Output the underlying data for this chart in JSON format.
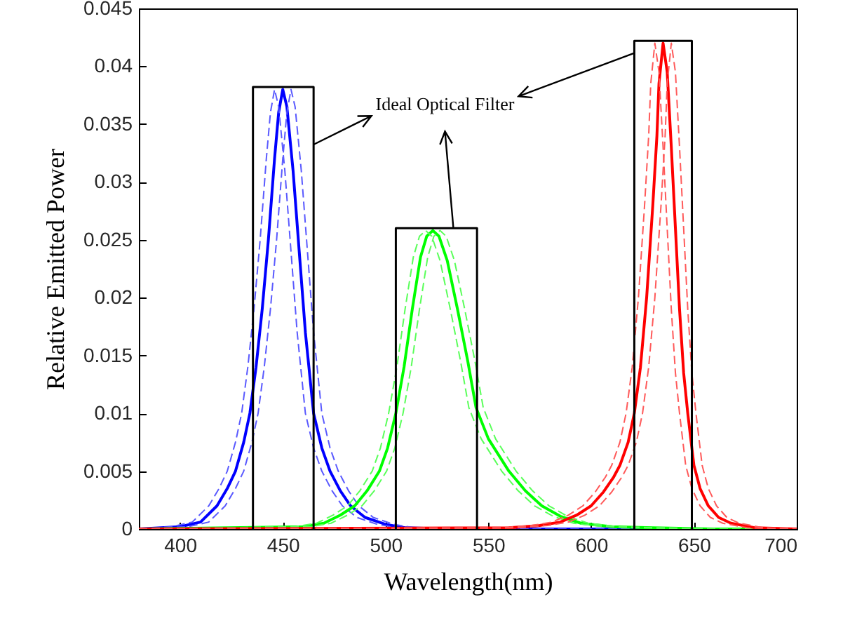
{
  "chart_data": {
    "type": "line",
    "xlabel": "Wavelength(nm)",
    "ylabel": "Relative Emitted Power",
    "xlim": [
      380,
      700
    ],
    "xticks": [
      400,
      450,
      500,
      550,
      600,
      650,
      700
    ],
    "ylim": [
      0,
      0.045
    ],
    "yticks": [
      0,
      0.005,
      0.01,
      0.015,
      0.02,
      0.025,
      0.03,
      0.035,
      0.04,
      0.045
    ],
    "grid": false,
    "annotations": [
      {
        "text": "Ideal Optical Filter",
        "x": 533,
        "y": 0.026
      }
    ],
    "series": [
      {
        "color": "#0000ff",
        "line_style": "solid",
        "x": [
          380,
          400,
          410,
          418,
          423,
          427,
          431,
          434,
          437,
          440,
          443,
          446,
          448,
          450,
          452,
          455,
          458,
          461,
          465,
          469,
          473,
          478,
          483,
          490,
          500,
          510,
          530,
          700
        ],
        "values": [
          0,
          0.0002,
          0.0006,
          0.002,
          0.0035,
          0.005,
          0.0075,
          0.01,
          0.014,
          0.019,
          0.025,
          0.032,
          0.036,
          0.038,
          0.0365,
          0.031,
          0.024,
          0.017,
          0.01,
          0.007,
          0.005,
          0.0033,
          0.002,
          0.001,
          0.0004,
          0.0001,
          0,
          0
        ]
      },
      {
        "color": "#5a5aff",
        "line_style": "dashed",
        "x": [
          380,
          396,
          406,
          414,
          419,
          423,
          427,
          430,
          433,
          436,
          439,
          442,
          444,
          446,
          448,
          451,
          454,
          457,
          461,
          465,
          469,
          474,
          479,
          486,
          496,
          506,
          526,
          700
        ],
        "values": [
          0,
          0.0002,
          0.0006,
          0.002,
          0.0035,
          0.005,
          0.0075,
          0.01,
          0.014,
          0.019,
          0.025,
          0.032,
          0.036,
          0.038,
          0.0365,
          0.031,
          0.024,
          0.017,
          0.01,
          0.007,
          0.005,
          0.0033,
          0.002,
          0.001,
          0.0004,
          0.0001,
          0,
          0
        ]
      },
      {
        "color": "#5a5aff",
        "line_style": "dashed",
        "x": [
          380,
          404,
          414,
          422,
          427,
          431,
          435,
          438,
          441,
          444,
          447,
          450,
          452,
          454,
          456,
          459,
          462,
          465,
          469,
          473,
          477,
          482,
          487,
          494,
          504,
          514,
          534,
          700
        ],
        "values": [
          0,
          0.0002,
          0.0006,
          0.002,
          0.0035,
          0.005,
          0.0075,
          0.01,
          0.014,
          0.019,
          0.025,
          0.032,
          0.036,
          0.038,
          0.0365,
          0.031,
          0.024,
          0.017,
          0.01,
          0.007,
          0.005,
          0.0033,
          0.002,
          0.001,
          0.0004,
          0.0001,
          0,
          0
        ]
      },
      {
        "color": "#00ff00",
        "line_style": "solid",
        "x": [
          380,
          460,
          470,
          478,
          485,
          491,
          497,
          501,
          505,
          509,
          513,
          517,
          520,
          523,
          526,
          530,
          535,
          540,
          544,
          550,
          560,
          568,
          576,
          585,
          595,
          610,
          630,
          660,
          700
        ],
        "values": [
          0,
          0.0002,
          0.0005,
          0.0012,
          0.002,
          0.0033,
          0.005,
          0.007,
          0.01,
          0.014,
          0.019,
          0.0235,
          0.0253,
          0.0258,
          0.0253,
          0.0232,
          0.019,
          0.0145,
          0.0105,
          0.0078,
          0.005,
          0.0033,
          0.002,
          0.0011,
          0.0005,
          0.0002,
          0.0001,
          0,
          0
        ]
      },
      {
        "color": "#5aff5a",
        "line_style": "dashed",
        "x": [
          380,
          456.5,
          466.5,
          474.5,
          481.5,
          487.5,
          493.5,
          497.5,
          501.5,
          505.5,
          509.5,
          513.5,
          516.5,
          519.5,
          522.5,
          526.5,
          531.5,
          536.5,
          540.5,
          546.5,
          556.5,
          564.5,
          572.5,
          581.5,
          591.5,
          606.5,
          626.5,
          656.5,
          700
        ],
        "values": [
          0,
          0.0002,
          0.0005,
          0.0012,
          0.002,
          0.0033,
          0.005,
          0.007,
          0.01,
          0.014,
          0.019,
          0.0235,
          0.0253,
          0.0258,
          0.0253,
          0.0232,
          0.019,
          0.0145,
          0.0105,
          0.0078,
          0.005,
          0.0033,
          0.002,
          0.0011,
          0.0005,
          0.0002,
          0.0001,
          0,
          0
        ]
      },
      {
        "color": "#5aff5a",
        "line_style": "dashed",
        "x": [
          380,
          463.5,
          473.5,
          481.5,
          488.5,
          494.5,
          500.5,
          504.5,
          508.5,
          512.5,
          516.5,
          520.5,
          523.5,
          526.5,
          529.5,
          533.5,
          538.5,
          543.5,
          547.5,
          553.5,
          563.5,
          571.5,
          579.5,
          588.5,
          598.5,
          613.5,
          633.5,
          663.5,
          700
        ],
        "values": [
          0,
          0.0002,
          0.0005,
          0.0012,
          0.002,
          0.0033,
          0.005,
          0.007,
          0.01,
          0.014,
          0.019,
          0.0235,
          0.0253,
          0.0258,
          0.0253,
          0.0232,
          0.019,
          0.0145,
          0.0105,
          0.0078,
          0.005,
          0.0033,
          0.002,
          0.0011,
          0.0005,
          0.0002,
          0.0001,
          0,
          0
        ]
      },
      {
        "color": "#ff0000",
        "line_style": "solid",
        "x": [
          380,
          560,
          575,
          585,
          593,
          600,
          606,
          611,
          614,
          618,
          621,
          624,
          627,
          630,
          632,
          633,
          635,
          637,
          639,
          641,
          643,
          645,
          647,
          650,
          653,
          657,
          662,
          668,
          680,
          700
        ],
        "values": [
          0,
          0.0001,
          0.0003,
          0.0006,
          0.0012,
          0.002,
          0.0032,
          0.0045,
          0.0055,
          0.0075,
          0.01,
          0.014,
          0.02,
          0.028,
          0.034,
          0.0385,
          0.042,
          0.0395,
          0.033,
          0.026,
          0.019,
          0.0135,
          0.01,
          0.0055,
          0.0035,
          0.002,
          0.001,
          0.0005,
          0.0001,
          0
        ]
      },
      {
        "color": "#ff5a5a",
        "line_style": "dashed",
        "x": [
          380,
          556,
          571,
          581,
          589,
          596,
          602,
          607,
          610,
          614,
          617,
          620,
          623,
          626,
          628,
          629,
          631,
          633,
          635,
          637,
          639,
          641,
          643,
          646,
          649,
          653,
          658,
          664,
          676,
          700
        ],
        "values": [
          0,
          0.0001,
          0.0003,
          0.0006,
          0.0012,
          0.002,
          0.0032,
          0.0045,
          0.0055,
          0.0075,
          0.01,
          0.014,
          0.02,
          0.028,
          0.034,
          0.0385,
          0.042,
          0.0395,
          0.033,
          0.026,
          0.019,
          0.0135,
          0.01,
          0.0055,
          0.0035,
          0.002,
          0.001,
          0.0005,
          0.0001,
          0
        ]
      },
      {
        "color": "#ff5a5a",
        "line_style": "dashed",
        "x": [
          380,
          564,
          579,
          589,
          597,
          604,
          610,
          615,
          618,
          622,
          625,
          628,
          631,
          634,
          636,
          637,
          639,
          641,
          643,
          645,
          647,
          649,
          651,
          654,
          657,
          661,
          666,
          672,
          684,
          700
        ],
        "values": [
          0,
          0.0001,
          0.0003,
          0.0006,
          0.0012,
          0.002,
          0.0032,
          0.0045,
          0.0055,
          0.0075,
          0.01,
          0.014,
          0.02,
          0.028,
          0.034,
          0.0385,
          0.042,
          0.0395,
          0.033,
          0.026,
          0.019,
          0.0135,
          0.01,
          0.0055,
          0.0035,
          0.002,
          0.001,
          0.0005,
          0.0001,
          0
        ]
      },
      {
        "color": "#000000",
        "line_style": "solid",
        "x": [
          435.5,
          435.5,
          465,
          465
        ],
        "values": [
          0,
          0.0382,
          0.0382,
          0
        ]
      },
      {
        "color": "#000000",
        "line_style": "solid",
        "x": [
          505,
          505,
          544.5,
          544.5
        ],
        "values": [
          0,
          0.026,
          0.026,
          0
        ]
      },
      {
        "color": "#000000",
        "line_style": "solid",
        "x": [
          621,
          621,
          649,
          649
        ],
        "values": [
          0,
          0.0422,
          0.0422,
          0
        ]
      }
    ]
  }
}
